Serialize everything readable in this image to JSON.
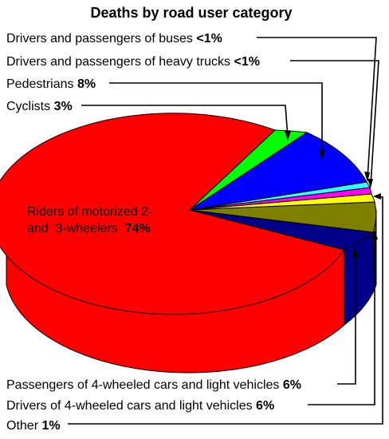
{
  "chart_data": {
    "type": "pie",
    "title": "Deaths by road user category",
    "slices": [
      {
        "label": "Drivers and passengers of buses",
        "value_text": "<1%",
        "value": 0.5,
        "color": "#33ffff"
      },
      {
        "label": "Drivers and passengers of heavy trucks",
        "value_text": "<1%",
        "value": 0.5,
        "color": "#ff00ff"
      },
      {
        "label": "Pedestrians",
        "value_text": "8%",
        "value": 8,
        "color": "#0000ff"
      },
      {
        "label": "Cyclists",
        "value_text": "3%",
        "value": 3,
        "color": "#00ff00"
      },
      {
        "label": "Riders of motorized 2- and 3-wheelers",
        "value_text": "74%",
        "value": 74,
        "color": "#ff0000"
      },
      {
        "label": "Passengers of 4-wheeled cars and light vehicles",
        "value_text": "6%",
        "value": 6,
        "color": "#000088"
      },
      {
        "label": "Drivers of 4-wheeled cars and light vehicles",
        "value_text": "6%",
        "value": 6,
        "color": "#808000"
      },
      {
        "label": "Other",
        "value_text": "1%",
        "value": 1,
        "color": "#ffff00"
      }
    ],
    "inside_label": {
      "line1": "Riders of motorized 2-",
      "line2": "and  3-wheelers",
      "value_text": "74%"
    }
  }
}
